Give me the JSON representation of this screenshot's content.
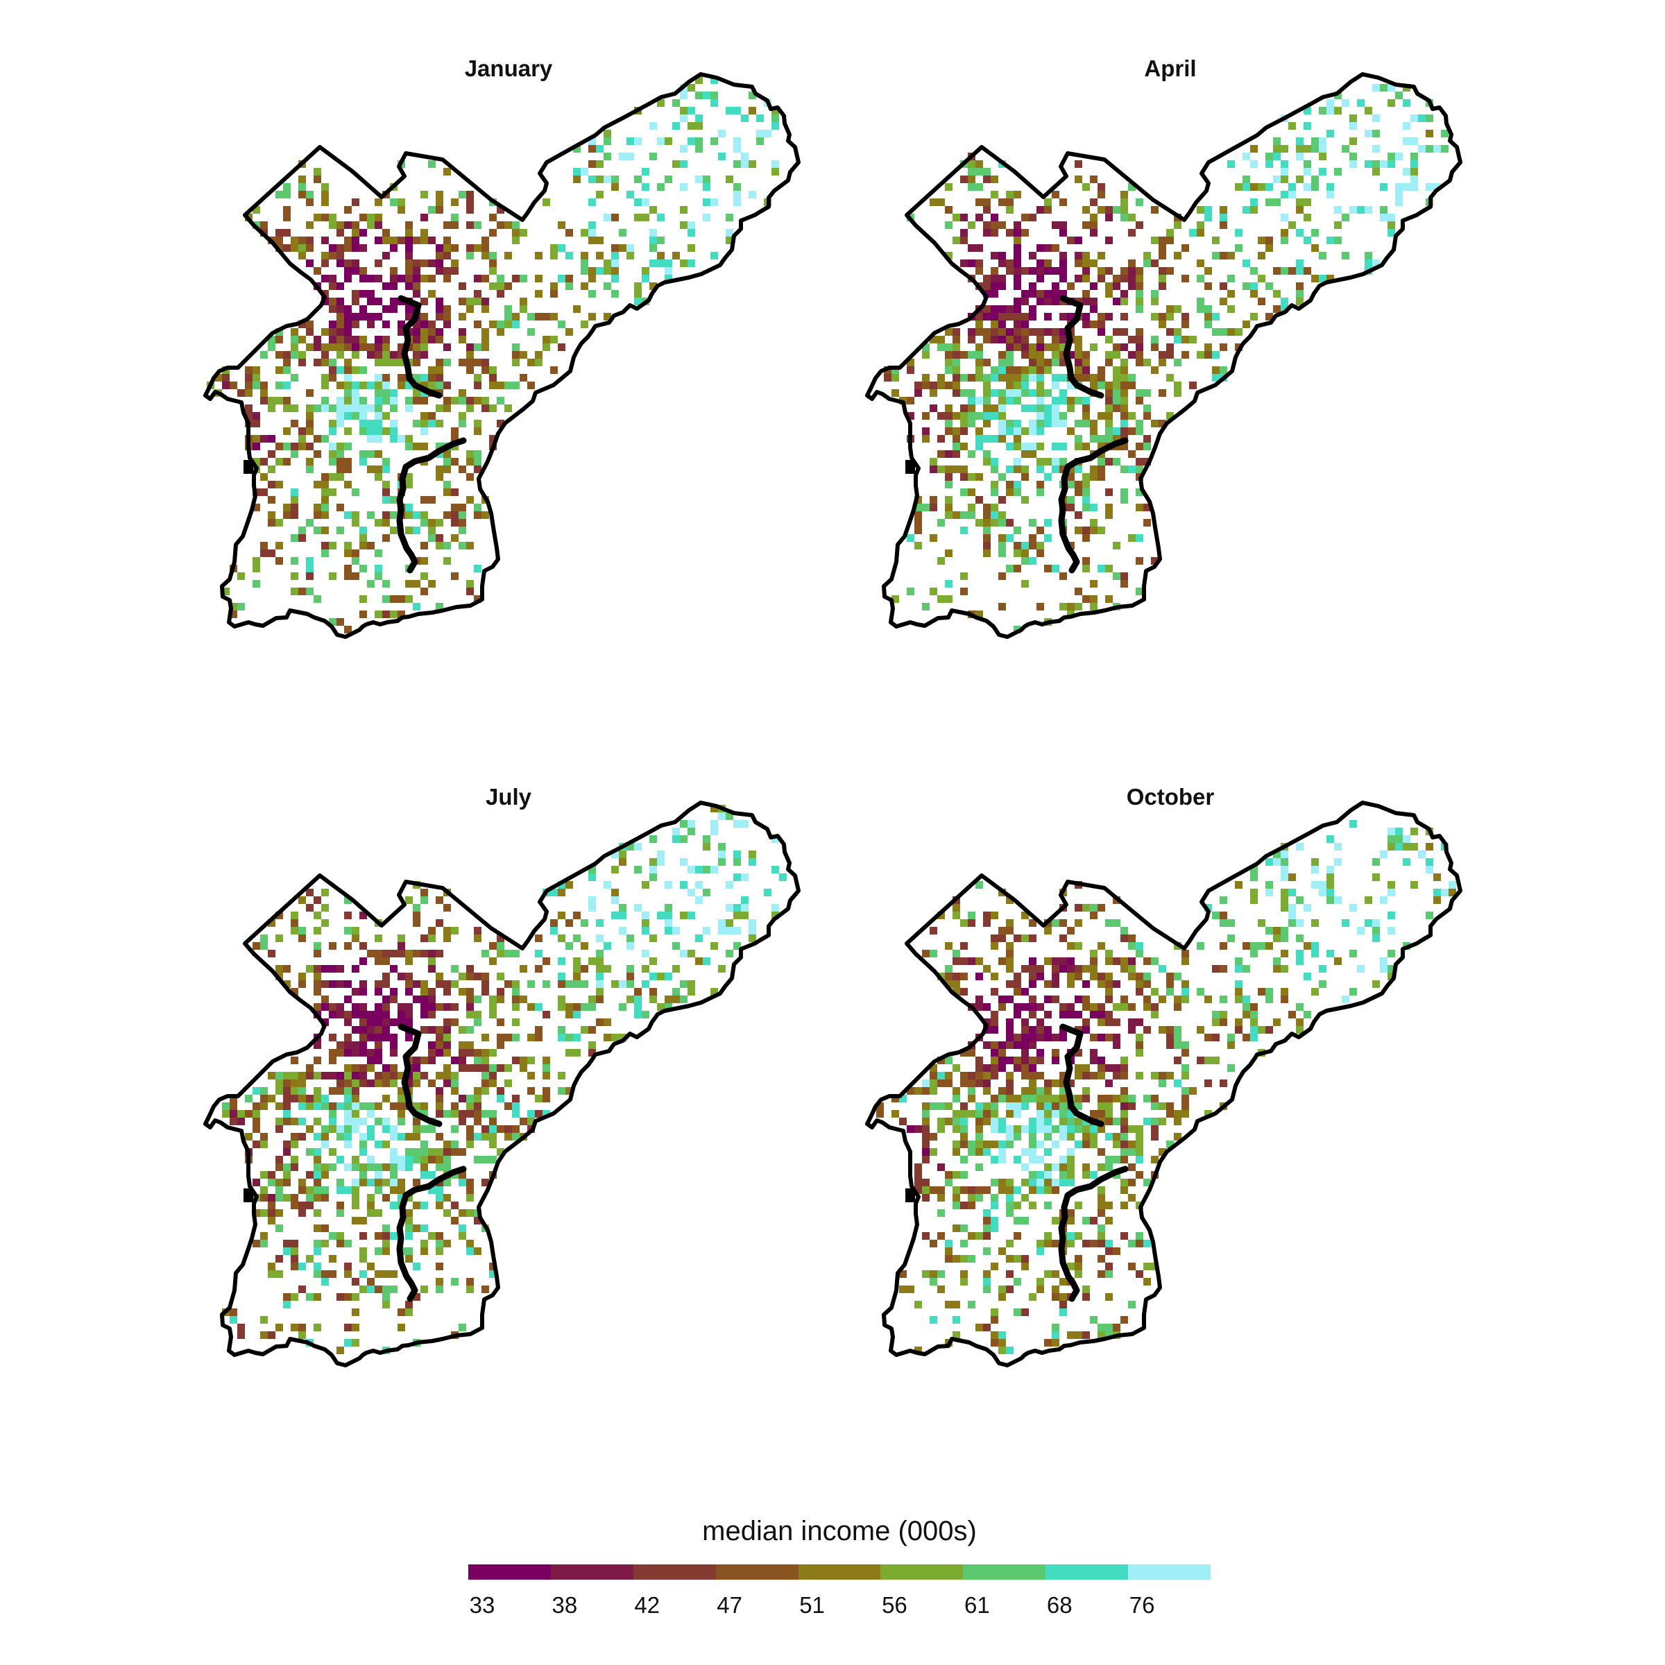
{
  "panels": [
    {
      "id": "jan",
      "title": "January",
      "seed": 11
    },
    {
      "id": "apr",
      "title": "April",
      "seed": 23
    },
    {
      "id": "jul",
      "title": "July",
      "seed": 37
    },
    {
      "id": "oct",
      "title": "October",
      "seed": 51
    }
  ],
  "legend": {
    "title": "median income (000s)",
    "ticks": [
      "33",
      "38",
      "42",
      "47",
      "51",
      "56",
      "61",
      "68",
      "76"
    ],
    "colors": [
      "#7a0060",
      "#7e1a46",
      "#843a30",
      "#8a5420",
      "#8c7a18",
      "#7daa30",
      "#5cc870",
      "#44dcc0",
      "#a0eef8"
    ]
  },
  "map": {
    "type": "gridded choropleth",
    "region_outline_color": "#000000",
    "background": "#ffffff"
  }
}
